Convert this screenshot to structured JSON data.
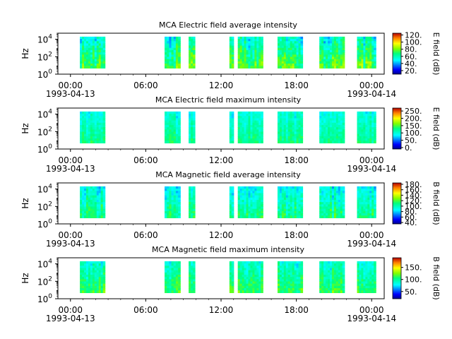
{
  "chart_data": [
    {
      "type": "heatmap",
      "title": "MCA  Electric field average intensity",
      "ylabel": "Hz",
      "colorbar_label": "E field (dB)",
      "colorbar_ticks": [
        "20.",
        "40.",
        "60.",
        "80.",
        "100.",
        "120."
      ],
      "colorbar_range": [
        10,
        125
      ],
      "y_ticks": [
        {
          "exp": "0",
          "v": 1
        },
        {
          "exp": "2",
          "v": 100
        },
        {
          "exp": "4",
          "v": 10000
        }
      ],
      "ylim": [
        1,
        50000
      ],
      "yscale": "log",
      "x_ticks": [
        "00:00",
        "06:00",
        "12:00",
        "18:00",
        "00:00"
      ],
      "x_date_start": "1993-04-13",
      "x_date_end": "1993-04-14",
      "xlim": [
        "1993-04-12T23:00",
        "1993-04-14T01:00"
      ],
      "data_freq_range": [
        5,
        20000
      ],
      "data_segments": [
        [
          "00:45",
          "02:45"
        ],
        [
          "07:30",
          "08:45"
        ],
        [
          "09:25",
          "09:55"
        ],
        [
          "12:40",
          "13:00"
        ],
        [
          "13:20",
          "15:20"
        ],
        [
          "16:30",
          "18:30"
        ],
        [
          "19:50",
          "21:50"
        ],
        [
          "22:50",
          "00:20"
        ]
      ],
      "level_mean": 65,
      "level_sd": 18
    },
    {
      "type": "heatmap",
      "title": "MCA  Electric field maximum intensity",
      "ylabel": "Hz",
      "colorbar_label": "E field (dB)",
      "colorbar_ticks": [
        "0.",
        "50.",
        "100.",
        "150.",
        "200.",
        "250."
      ],
      "colorbar_range": [
        -10,
        270
      ],
      "y_ticks": [
        {
          "exp": "0",
          "v": 1
        },
        {
          "exp": "2",
          "v": 100
        },
        {
          "exp": "4",
          "v": 10000
        }
      ],
      "ylim": [
        1,
        50000
      ],
      "yscale": "log",
      "x_ticks": [
        "00:00",
        "06:00",
        "12:00",
        "18:00",
        "00:00"
      ],
      "x_date_start": "1993-04-13",
      "x_date_end": "1993-04-14",
      "xlim": [
        "1993-04-12T23:00",
        "1993-04-14T01:00"
      ],
      "data_freq_range": [
        5,
        20000
      ],
      "data_segments": [
        [
          "00:45",
          "02:45"
        ],
        [
          "07:30",
          "08:45"
        ],
        [
          "09:25",
          "09:55"
        ],
        [
          "12:40",
          "13:00"
        ],
        [
          "13:20",
          "15:20"
        ],
        [
          "16:30",
          "18:30"
        ],
        [
          "19:50",
          "21:50"
        ],
        [
          "22:50",
          "00:20"
        ]
      ],
      "level_mean": 110,
      "level_sd": 25
    },
    {
      "type": "heatmap",
      "title": "MCA  Magnetic field average intensity",
      "ylabel": "Hz",
      "colorbar_label": "B field (dB)",
      "colorbar_ticks": [
        "40.",
        "60.",
        "80.",
        "100.",
        "120.",
        "140.",
        "160.",
        "180."
      ],
      "colorbar_range": [
        35,
        185
      ],
      "y_ticks": [
        {
          "exp": "0",
          "v": 1
        },
        {
          "exp": "2",
          "v": 100
        },
        {
          "exp": "4",
          "v": 10000
        }
      ],
      "ylim": [
        1,
        50000
      ],
      "yscale": "log",
      "x_ticks": [
        "00:00",
        "06:00",
        "12:00",
        "18:00",
        "00:00"
      ],
      "x_date_start": "1993-04-13",
      "x_date_end": "1993-04-14",
      "xlim": [
        "1993-04-12T23:00",
        "1993-04-14T01:00"
      ],
      "data_freq_range": [
        5,
        20000
      ],
      "data_segments": [
        [
          "00:45",
          "02:45"
        ],
        [
          "07:30",
          "08:45"
        ],
        [
          "09:25",
          "09:55"
        ],
        [
          "12:40",
          "13:00"
        ],
        [
          "13:20",
          "15:20"
        ],
        [
          "16:30",
          "18:30"
        ],
        [
          "19:50",
          "21:50"
        ],
        [
          "22:50",
          "00:20"
        ]
      ],
      "level_mean": 100,
      "level_sd": 18
    },
    {
      "type": "heatmap",
      "title": "MCA  Magnetic field maximum intensity",
      "ylabel": "Hz",
      "colorbar_label": "B field (dB)",
      "colorbar_ticks": [
        "50.",
        "100.",
        "150."
      ],
      "colorbar_range": [
        20,
        190
      ],
      "y_ticks": [
        {
          "exp": "0",
          "v": 1
        },
        {
          "exp": "2",
          "v": 100
        },
        {
          "exp": "4",
          "v": 10000
        }
      ],
      "ylim": [
        1,
        50000
      ],
      "yscale": "log",
      "x_ticks": [
        "00:00",
        "06:00",
        "12:00",
        "18:00",
        "00:00"
      ],
      "x_date_start": "1993-04-13",
      "x_date_end": "1993-04-14",
      "xlim": [
        "1993-04-12T23:00",
        "1993-04-14T01:00"
      ],
      "data_freq_range": [
        5,
        20000
      ],
      "data_segments": [
        [
          "00:45",
          "02:45"
        ],
        [
          "07:30",
          "08:45"
        ],
        [
          "09:25",
          "09:55"
        ],
        [
          "12:40",
          "13:00"
        ],
        [
          "13:20",
          "15:20"
        ],
        [
          "16:30",
          "18:30"
        ],
        [
          "19:50",
          "21:50"
        ],
        [
          "22:50",
          "00:20"
        ]
      ],
      "level_mean": 100,
      "level_sd": 20
    }
  ]
}
